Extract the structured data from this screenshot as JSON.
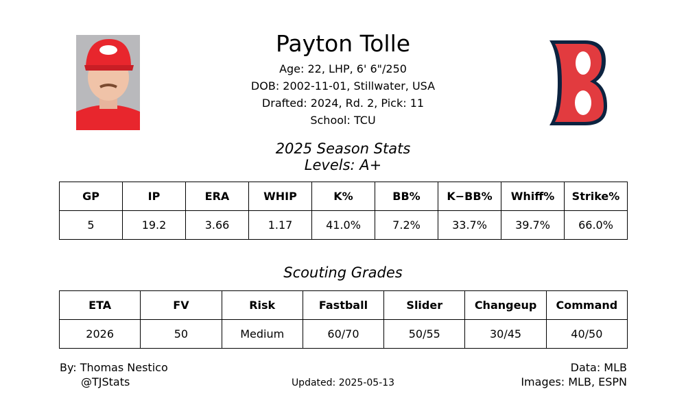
{
  "header": {
    "name": "Payton Tolle",
    "lines": [
      "Age: 22, LHP, 6' 6\"/250",
      "DOB: 2002-11-01, Stillwater, USA",
      "Drafted: 2024, Rd. 2, Pick: 11",
      "School: TCU"
    ]
  },
  "season": {
    "title": "2025 Season Stats",
    "levels": "Levels: A+",
    "table": {
      "headers": [
        "GP",
        "IP",
        "ERA",
        "WHIP",
        "K%",
        "BB%",
        "K−BB%",
        "Whiff%",
        "Strike%"
      ],
      "rows": [
        [
          "5",
          "19.2",
          "3.66",
          "1.17",
          "41.0%",
          "7.2%",
          "33.7%",
          "39.7%",
          "66.0%"
        ]
      ]
    }
  },
  "scouting": {
    "title": "Scouting Grades",
    "table": {
      "headers": [
        "ETA",
        "FV",
        "Risk",
        "Fastball",
        "Slider",
        "Changeup",
        "Command"
      ],
      "rows": [
        [
          "2026",
          "50",
          "Medium",
          "60/70",
          "50/55",
          "30/45",
          "40/50"
        ]
      ]
    }
  },
  "footer": {
    "by": "By: Thomas Nestico",
    "handle": "@TJStats",
    "updated": "Updated: 2025-05-13",
    "data": "Data: MLB",
    "images": "Images: MLB, ESPN"
  }
}
